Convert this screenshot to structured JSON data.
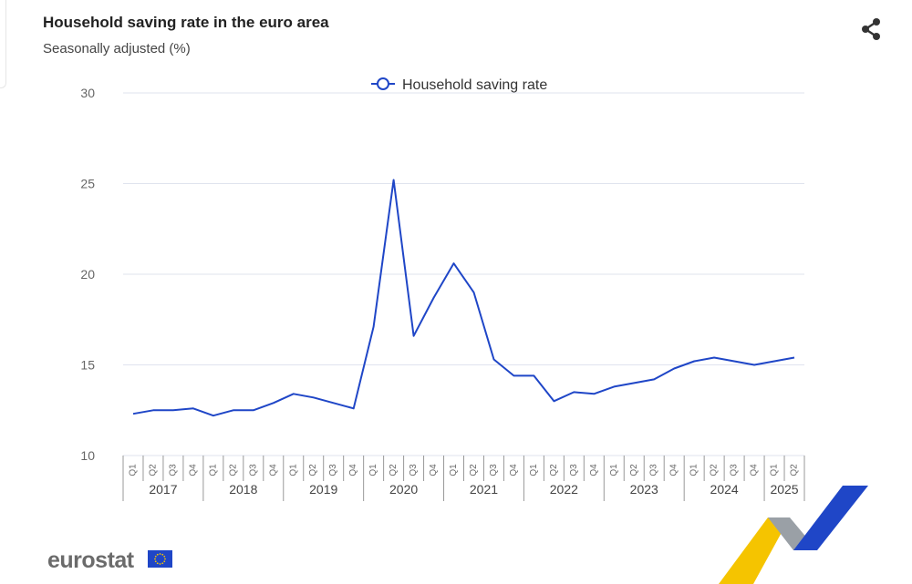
{
  "title": "Household saving rate in the euro area",
  "subtitle": "Seasonally adjusted (%)",
  "logo_text": "eurostat",
  "colors": {
    "series": "#1f46c7",
    "grid": "#dfe3ee",
    "axis": "#666666"
  },
  "icons": {
    "share": "share-icon",
    "flag": "eu-flag-icon"
  },
  "chart_data": {
    "type": "line",
    "title": "Household saving rate in the euro area",
    "subtitle": "Seasonally adjusted (%)",
    "ylim": [
      10,
      30
    ],
    "yticks": [
      10,
      15,
      20,
      25,
      30
    ],
    "grid": true,
    "legend": "top-center",
    "quarters": [
      "Q1",
      "Q2",
      "Q3",
      "Q4",
      "Q1",
      "Q2",
      "Q3",
      "Q4",
      "Q1",
      "Q2",
      "Q3",
      "Q4",
      "Q1",
      "Q2",
      "Q3",
      "Q4",
      "Q1",
      "Q2",
      "Q3",
      "Q4",
      "Q1",
      "Q2",
      "Q3",
      "Q4",
      "Q1",
      "Q2",
      "Q3",
      "Q4",
      "Q1",
      "Q2",
      "Q3",
      "Q4",
      "Q1",
      "Q2"
    ],
    "years": [
      "2017",
      "2018",
      "2019",
      "2020",
      "2021",
      "2022",
      "2023",
      "2024",
      "2025"
    ],
    "series": [
      {
        "name": "Household saving rate",
        "values": [
          12.3,
          12.5,
          12.5,
          12.6,
          12.2,
          12.5,
          12.5,
          12.9,
          13.4,
          13.2,
          12.9,
          12.6,
          17.1,
          25.2,
          16.6,
          18.7,
          20.6,
          19.0,
          15.3,
          14.4,
          14.4,
          13.0,
          13.5,
          13.4,
          13.8,
          14.0,
          14.2,
          14.8,
          15.2,
          15.4,
          15.2,
          15.0,
          15.2,
          15.4
        ]
      }
    ]
  }
}
